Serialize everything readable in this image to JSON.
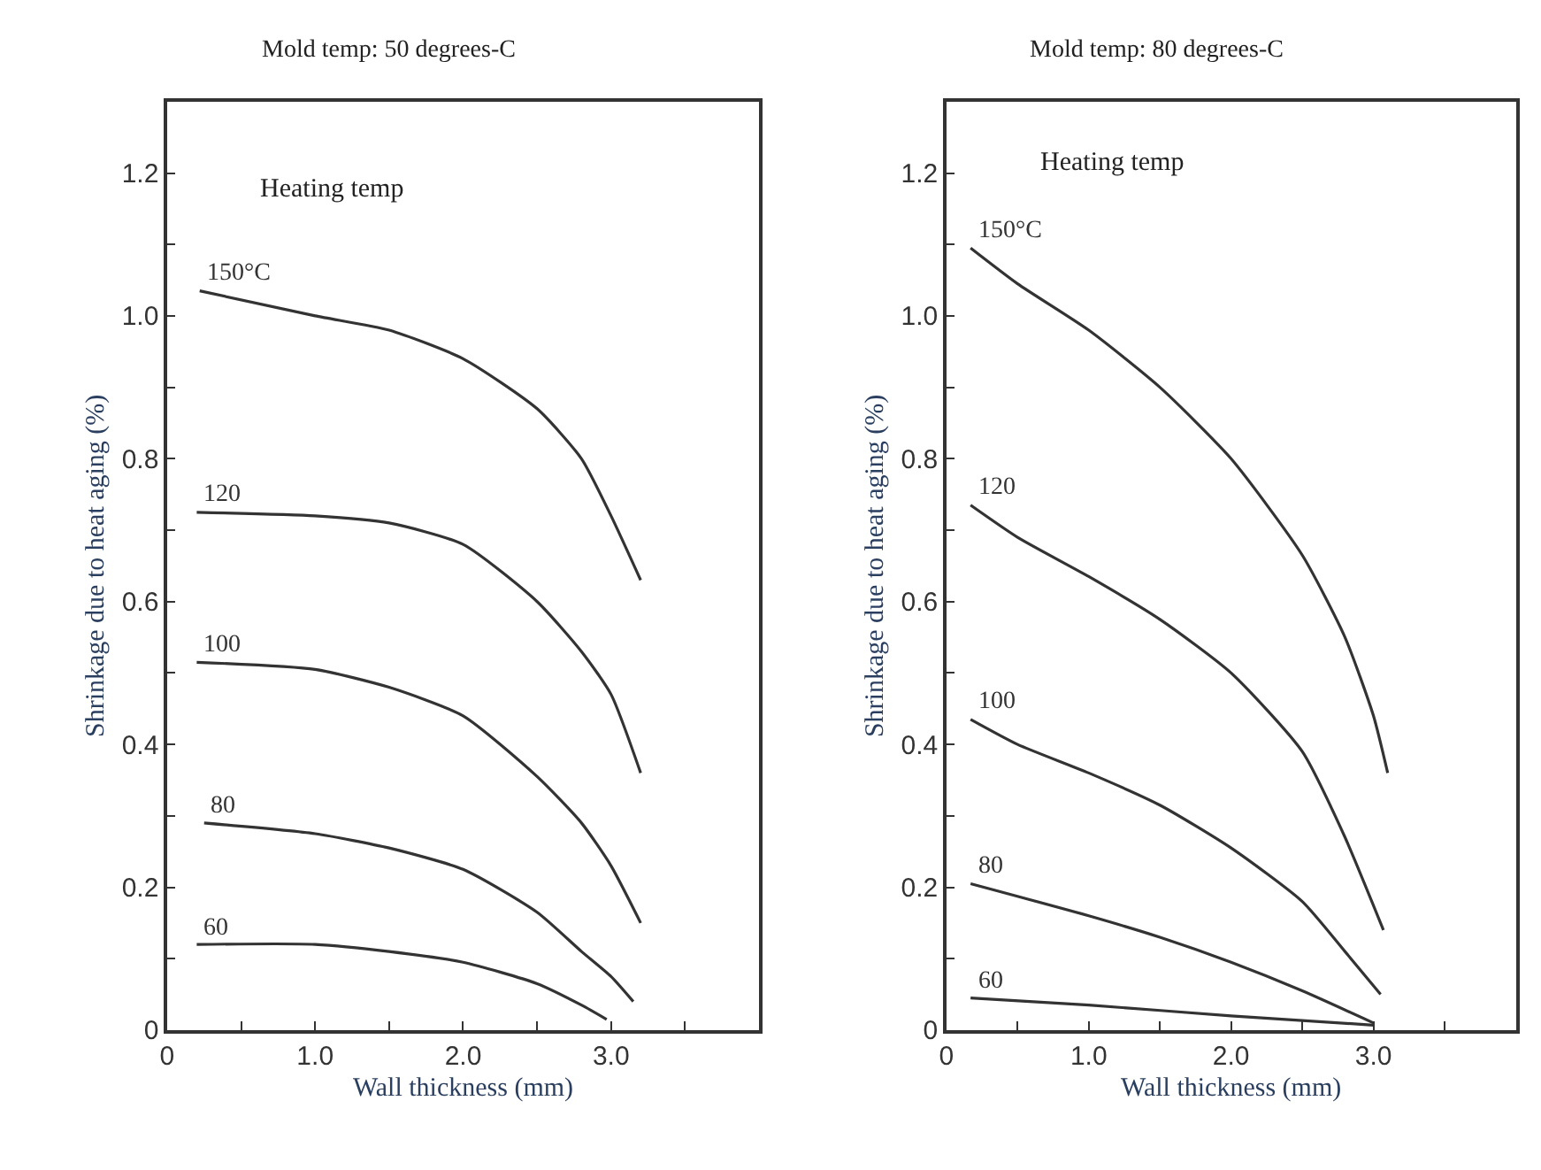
{
  "chart_data": [
    {
      "type": "line",
      "title": "Mold temp: 50 degrees-C",
      "xlabel": "Wall thickness (mm)",
      "ylabel": "Shrinkage due to heat aging (%)",
      "annotations": [
        "Heating temp"
      ],
      "xlim": [
        0,
        4
      ],
      "ylim": [
        0,
        1.3
      ],
      "xticks": [
        0,
        {
          "value": 0.5,
          "label": null
        },
        {
          "value": 1,
          "label": "1.0"
        },
        {
          "value": 1.5,
          "label": null
        },
        {
          "value": 2,
          "label": "2.0"
        },
        {
          "value": 2.5,
          "label": null
        },
        {
          "value": 3,
          "label": "3.0"
        },
        {
          "value": 3.5,
          "label": null
        }
      ],
      "yticks": [
        0,
        {
          "value": 0.1,
          "label": null
        },
        0.2,
        {
          "value": 0.3,
          "label": null
        },
        0.4,
        {
          "value": 0.5,
          "label": null
        },
        0.6,
        {
          "value": 0.7,
          "label": null
        },
        0.8,
        {
          "value": 0.9,
          "label": null
        },
        {
          "value": 1,
          "label": "1.0"
        },
        {
          "value": 1.1,
          "label": null
        },
        1.2
      ],
      "grid": false,
      "legend": false,
      "marker": "none",
      "line_style": "solid",
      "series": [
        {
          "name": "150°C",
          "color": "#333333",
          "x": [
            0.22,
            1.0,
            1.5,
            2.0,
            2.5,
            2.8,
            3.0,
            3.2
          ],
          "values": [
            1.035,
            1.0,
            0.98,
            0.94,
            0.87,
            0.8,
            0.72,
            0.63
          ]
        },
        {
          "name": "120",
          "color": "#333333",
          "x": [
            0.2,
            1.0,
            1.5,
            2.0,
            2.5,
            2.8,
            3.0,
            3.2
          ],
          "values": [
            0.725,
            0.72,
            0.71,
            0.68,
            0.6,
            0.53,
            0.47,
            0.36
          ]
        },
        {
          "name": "100",
          "color": "#333333",
          "x": [
            0.2,
            1.0,
            1.5,
            2.0,
            2.5,
            2.8,
            3.0,
            3.2
          ],
          "values": [
            0.515,
            0.505,
            0.48,
            0.44,
            0.355,
            0.29,
            0.23,
            0.15
          ]
        },
        {
          "name": "80",
          "color": "#333333",
          "x": [
            0.25,
            1.0,
            1.5,
            2.0,
            2.5,
            2.8,
            3.0,
            3.15
          ],
          "values": [
            0.29,
            0.275,
            0.255,
            0.225,
            0.165,
            0.11,
            0.075,
            0.04
          ]
        },
        {
          "name": "60",
          "color": "#333333",
          "x": [
            0.2,
            1.0,
            1.5,
            2.0,
            2.5,
            2.8,
            2.97
          ],
          "values": [
            0.12,
            0.12,
            0.11,
            0.095,
            0.065,
            0.035,
            0.015
          ]
        }
      ]
    },
    {
      "type": "line",
      "title": "Mold temp: 80 degrees-C",
      "xlabel": "Wall thickness (mm)",
      "ylabel": "Shrinkage due to heat aging (%)",
      "annotations": [
        "Heating temp"
      ],
      "xlim": [
        0,
        4
      ],
      "ylim": [
        0,
        1.3
      ],
      "xticks": [
        0,
        {
          "value": 0.5,
          "label": null
        },
        {
          "value": 1,
          "label": "1.0"
        },
        {
          "value": 1.5,
          "label": null
        },
        {
          "value": 2,
          "label": "2.0"
        },
        {
          "value": 2.5,
          "label": null
        },
        {
          "value": 3,
          "label": "3.0"
        },
        {
          "value": 3.5,
          "label": null
        }
      ],
      "yticks": [
        0,
        {
          "value": 0.1,
          "label": null
        },
        0.2,
        {
          "value": 0.3,
          "label": null
        },
        0.4,
        {
          "value": 0.5,
          "label": null
        },
        0.6,
        {
          "value": 0.7,
          "label": null
        },
        0.8,
        {
          "value": 0.9,
          "label": null
        },
        {
          "value": 1,
          "label": "1.0"
        },
        {
          "value": 1.1,
          "label": null
        },
        1.2
      ],
      "grid": false,
      "legend": false,
      "marker": "none",
      "line_style": "solid",
      "series": [
        {
          "name": "150°C",
          "color": "#333333",
          "x": [
            0.17,
            0.5,
            1.0,
            1.5,
            2.0,
            2.5,
            2.8,
            3.0,
            3.1
          ],
          "values": [
            1.095,
            1.045,
            0.98,
            0.9,
            0.8,
            0.665,
            0.55,
            0.44,
            0.36
          ]
        },
        {
          "name": "120",
          "color": "#333333",
          "x": [
            0.17,
            0.5,
            1.0,
            1.5,
            2.0,
            2.5,
            2.8,
            3.07
          ],
          "values": [
            0.735,
            0.69,
            0.635,
            0.575,
            0.5,
            0.39,
            0.27,
            0.14
          ]
        },
        {
          "name": "100",
          "color": "#333333",
          "x": [
            0.17,
            0.5,
            1.0,
            1.5,
            2.0,
            2.5,
            2.8,
            3.05
          ],
          "values": [
            0.435,
            0.4,
            0.36,
            0.315,
            0.255,
            0.18,
            0.11,
            0.05
          ]
        },
        {
          "name": "80",
          "color": "#333333",
          "x": [
            0.17,
            1.0,
            1.5,
            2.0,
            2.5,
            3.0
          ],
          "values": [
            0.205,
            0.16,
            0.13,
            0.095,
            0.055,
            0.01
          ]
        },
        {
          "name": "60",
          "color": "#333333",
          "x": [
            0.17,
            1.0,
            2.0,
            3.0
          ],
          "values": [
            0.045,
            0.035,
            0.02,
            0.007
          ]
        }
      ]
    }
  ]
}
